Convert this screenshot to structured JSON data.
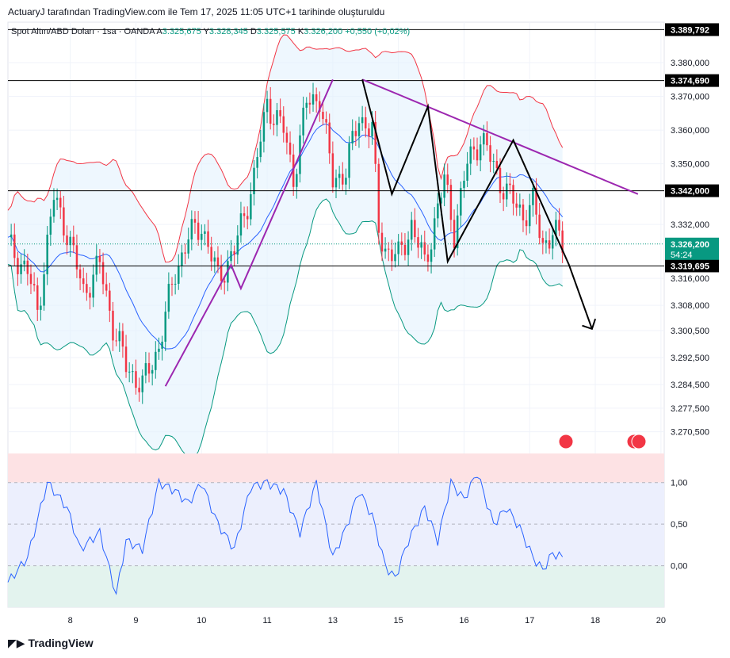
{
  "caption": "ActuaryJ tarafından TradingView.com ile Tem 17, 2025 11:05 UTC+1 tarihinde oluşturuldu",
  "legend": {
    "symbol": "Spot Altın/ABD Doları · 1sa · OANDA",
    "a_label": "A",
    "a_value": "3.325,675",
    "y_label": "Y",
    "y_value": "3.328,345",
    "d_label": "D",
    "d_value": "3.325,575",
    "k_label": "K",
    "k_value": "3.326,200",
    "change": "+0,550 (+0,02%)"
  },
  "brand": "TradingView",
  "colors": {
    "candle_up": "#089981",
    "candle_down": "#f23645",
    "bb_upper": "#f23645",
    "bb_mid": "#2962ff",
    "bb_lower": "#089981",
    "bb_fill": "#e3f2fd",
    "trend_purple": "#9c27b0",
    "pattern_black": "#000000",
    "oscillator": "#2962ff",
    "price_tag": "#089981",
    "level_tag": "#000000"
  },
  "chart_data": [
    {
      "type": "candlestick",
      "title": "Spot Altın/ABD Doları · 1sa · OANDA",
      "ylim": [
        3265,
        3392
      ],
      "y_ticks": [
        3380,
        3370,
        3360,
        3350,
        3332,
        3316,
        3308,
        3300.5,
        3292.5,
        3284.5,
        3277.5,
        3270.5
      ],
      "y_tick_labels": [
        "3.380,000",
        "3.370,000",
        "3.360,000",
        "3.350,000",
        "3.332,000",
        "3.316,000",
        "3.308,000",
        "3.300,500",
        "3.292,500",
        "3.284,500",
        "3.277,500",
        "3.270,500"
      ],
      "x_ticks": [
        0.95,
        1.95,
        2.95,
        3.95,
        4.95,
        5.95,
        6.95,
        7.95,
        8.95,
        9.95
      ],
      "x_tick_labels": [
        "8",
        "9",
        "10",
        "11",
        "13",
        "15",
        "16",
        "17",
        "18",
        "20"
      ],
      "x_range": [
        0,
        10
      ],
      "horizontal_levels": [
        {
          "value": 3389.792,
          "label": "3.389,792"
        },
        {
          "value": 3374.69,
          "label": "3.374,690"
        },
        {
          "value": 3342.0,
          "label": "3.342,000"
        },
        {
          "value": 3319.695,
          "label": "3.319,695"
        }
      ],
      "last_price": {
        "value": 3326.2,
        "label": "3.326,200",
        "countdown": "54:24"
      },
      "price_path_x": [
        0,
        0.3,
        0.45,
        0.7,
        0.9,
        1.15,
        1.4,
        1.6,
        1.8,
        2.05,
        2.3,
        2.55,
        2.75,
        2.95,
        3.2,
        3.45,
        3.6,
        3.75,
        3.95,
        4.2,
        4.35,
        4.55,
        4.75,
        4.95,
        5.15,
        5.35,
        5.55,
        5.65,
        5.75,
        5.95,
        6.15,
        6.35,
        6.55,
        6.65,
        6.8,
        7.0,
        7.2,
        7.5,
        7.65,
        7.85,
        8.0,
        8.15,
        8.3,
        8.45
      ],
      "price_path_y": [
        3326,
        3318,
        3306,
        3340,
        3330,
        3312,
        3320,
        3302,
        3290,
        3284,
        3296,
        3318,
        3328,
        3332,
        3316,
        3324,
        3335,
        3346,
        3368,
        3360,
        3346,
        3368,
        3370,
        3345,
        3348,
        3364,
        3360,
        3330,
        3325,
        3322,
        3332,
        3320,
        3337,
        3345,
        3330,
        3350,
        3358,
        3345,
        3340,
        3335,
        3338,
        3326,
        3330,
        3326
      ]
    },
    {
      "type": "line",
      "title": "",
      "ylim": [
        -0.5,
        1.35
      ],
      "y_ticks": [
        1.0,
        0.5,
        0.0
      ],
      "y_tick_labels": [
        "1,00",
        "0,50",
        "0,00"
      ],
      "bands": [
        {
          "from": 1.0,
          "to": 1.35,
          "color": "#fde2e4"
        },
        {
          "from": 0.0,
          "to": 1.0,
          "color": "#eceffd"
        },
        {
          "from": -0.5,
          "to": 0.0,
          "color": "#e3f3ee"
        }
      ],
      "x": [
        0,
        0.3,
        0.6,
        0.9,
        1.1,
        1.4,
        1.65,
        1.8,
        2.05,
        2.3,
        2.55,
        2.75,
        2.95,
        3.2,
        3.45,
        3.7,
        3.95,
        4.2,
        4.45,
        4.7,
        4.95,
        5.15,
        5.35,
        5.55,
        5.75,
        5.9,
        6.1,
        6.35,
        6.55,
        6.75,
        6.95,
        7.15,
        7.4,
        7.6,
        7.8,
        8.0,
        8.15,
        8.3,
        8.45
      ],
      "values": [
        -0.2,
        0.1,
        1.0,
        0.7,
        0.2,
        0.4,
        -0.35,
        0.3,
        0.2,
        1.0,
        0.9,
        0.75,
        1.0,
        0.5,
        0.2,
        0.95,
        1.0,
        0.9,
        0.4,
        1.0,
        0.1,
        0.45,
        0.9,
        0.6,
        0.0,
        -0.15,
        0.3,
        0.7,
        0.3,
        1.0,
        0.8,
        1.12,
        0.5,
        0.7,
        0.45,
        0.1,
        -0.05,
        0.15,
        0.1
      ]
    }
  ]
}
